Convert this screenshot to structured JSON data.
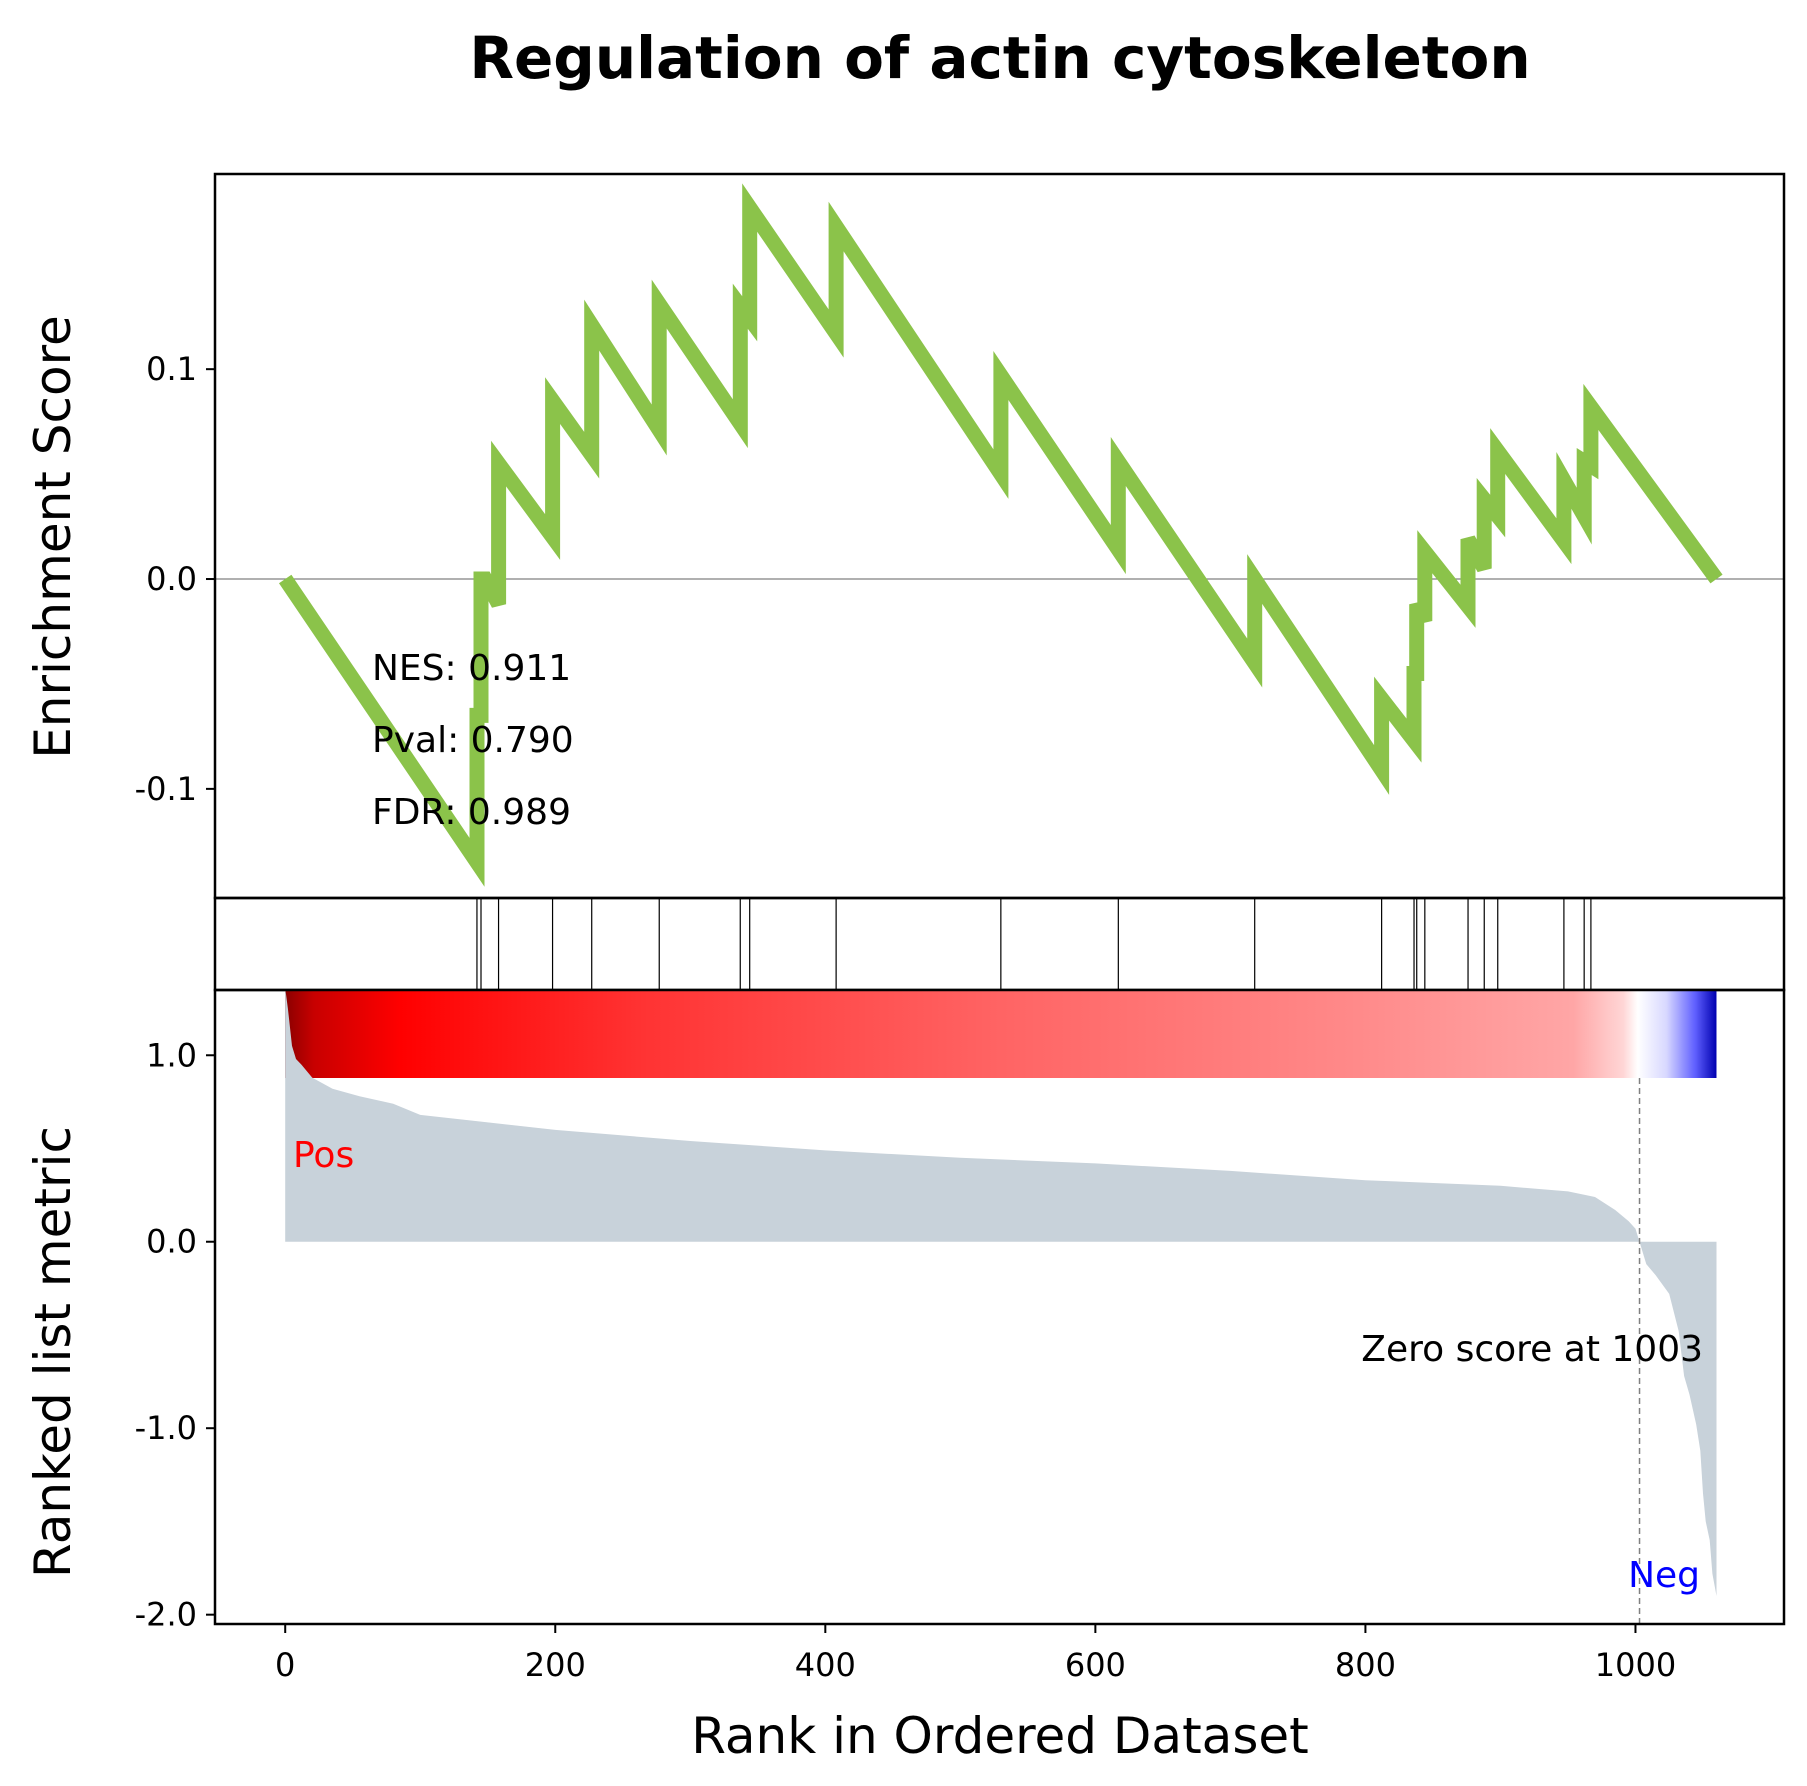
{
  "chart_data": {
    "type": "line",
    "title": "Regulation of actin cytoskeleton",
    "xlabel": "Rank in Ordered Dataset",
    "xlim": [
      -52,
      1110
    ],
    "x_ticks": [
      0,
      200,
      400,
      600,
      800,
      1000
    ],
    "x_tick_labels": [
      "0",
      "200",
      "400",
      "600",
      "800",
      "1000"
    ],
    "enrichment": {
      "ylabel": "Enrichment Score",
      "ylim": [
        -0.152,
        0.193
      ],
      "y_ticks": [
        -0.1,
        0.0,
        0.1
      ],
      "y_tick_labels": [
        "-0.1",
        "0.0",
        "0.1"
      ],
      "line_color": "#8bc34a",
      "points": [
        [
          0,
          0.0
        ],
        [
          142,
          -0.135
        ],
        [
          142,
          -0.065
        ],
        [
          145,
          -0.065
        ],
        [
          145,
          0.0
        ],
        [
          148,
          0.0
        ],
        [
          158,
          -0.012
        ],
        [
          158,
          0.055
        ],
        [
          198,
          0.02
        ],
        [
          198,
          0.085
        ],
        [
          227,
          0.059
        ],
        [
          227,
          0.121
        ],
        [
          277,
          0.071
        ],
        [
          277,
          0.131
        ],
        [
          337,
          0.074
        ],
        [
          337,
          0.13
        ],
        [
          344,
          0.124
        ],
        [
          344,
          0.177
        ],
        [
          408,
          0.117
        ],
        [
          408,
          0.168
        ],
        [
          530,
          0.05
        ],
        [
          530,
          0.097
        ],
        [
          617,
          0.014
        ],
        [
          617,
          0.056
        ],
        [
          718,
          -0.04
        ],
        [
          718,
          0.0
        ],
        [
          812,
          -0.091
        ],
        [
          812,
          -0.057
        ],
        [
          836,
          -0.077
        ],
        [
          836,
          -0.045
        ],
        [
          838,
          -0.045
        ],
        [
          838,
          -0.012
        ],
        [
          844,
          -0.02
        ],
        [
          844,
          0.013
        ],
        [
          876,
          -0.013
        ],
        [
          876,
          0.019
        ],
        [
          888,
          0.005
        ],
        [
          888,
          0.038
        ],
        [
          898,
          0.03
        ],
        [
          898,
          0.061
        ],
        [
          947,
          0.018
        ],
        [
          947,
          0.047
        ],
        [
          962,
          0.03
        ],
        [
          962,
          0.056
        ],
        [
          967,
          0.054
        ],
        [
          967,
          0.082
        ],
        [
          1060,
          0.0
        ]
      ],
      "hit_ranks": [
        142,
        145,
        158,
        198,
        227,
        277,
        337,
        344,
        408,
        530,
        617,
        718,
        812,
        836,
        838,
        844,
        876,
        888,
        898,
        947,
        962,
        967
      ]
    },
    "ranked_metric": {
      "ylabel": "Ranked list metric",
      "ylim": [
        -2.05,
        1.35
      ],
      "y_ticks": [
        -2.0,
        -1.0,
        0.0,
        1.0
      ],
      "y_tick_labels": [
        "-2.0",
        "-1.0",
        "0.0",
        "1.0"
      ],
      "fill_color": "#c8d2da",
      "points": [
        [
          0,
          1.36
        ],
        [
          2,
          1.25
        ],
        [
          5,
          1.05
        ],
        [
          8,
          0.98
        ],
        [
          12,
          0.95
        ],
        [
          20,
          0.88
        ],
        [
          35,
          0.82
        ],
        [
          55,
          0.78
        ],
        [
          80,
          0.74
        ],
        [
          100,
          0.68
        ],
        [
          150,
          0.64
        ],
        [
          200,
          0.6
        ],
        [
          300,
          0.54
        ],
        [
          400,
          0.49
        ],
        [
          500,
          0.45
        ],
        [
          600,
          0.42
        ],
        [
          700,
          0.38
        ],
        [
          800,
          0.33
        ],
        [
          900,
          0.3
        ],
        [
          950,
          0.27
        ],
        [
          970,
          0.24
        ],
        [
          985,
          0.17
        ],
        [
          995,
          0.11
        ],
        [
          1000,
          0.07
        ],
        [
          1003,
          0.0
        ],
        [
          1008,
          -0.12
        ],
        [
          1015,
          -0.18
        ],
        [
          1025,
          -0.28
        ],
        [
          1032,
          -0.48
        ],
        [
          1036,
          -0.72
        ],
        [
          1040,
          -0.82
        ],
        [
          1045,
          -0.98
        ],
        [
          1048,
          -1.12
        ],
        [
          1050,
          -1.35
        ],
        [
          1052,
          -1.5
        ],
        [
          1055,
          -1.6
        ],
        [
          1057,
          -1.78
        ],
        [
          1060,
          -1.9
        ]
      ],
      "pos_label": "Pos",
      "neg_label": "Neg",
      "zero_annotation": "Zero score at 1003",
      "zero_rank": 1003
    },
    "stats": {
      "nes": "NES: 0.911",
      "pval": "Pval: 0.790",
      "fdr": "FDR: 0.989"
    },
    "heatbar_range": [
      0,
      1060
    ],
    "colors": {
      "pos": "#ff0000",
      "neg": "#0000ff",
      "frame": "#000000",
      "zero_line": "#808080"
    }
  }
}
